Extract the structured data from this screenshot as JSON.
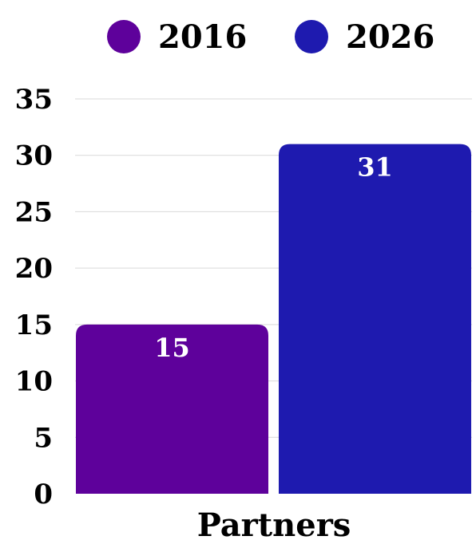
{
  "chart_data": {
    "type": "bar",
    "categories": [
      "Partners"
    ],
    "series": [
      {
        "name": "2016",
        "values": [
          15
        ],
        "color": "#5e019b"
      },
      {
        "name": "2026",
        "values": [
          31
        ],
        "color": "#1e1aaf"
      }
    ],
    "ylim": [
      0,
      35
    ],
    "y_ticks": [
      "0",
      "5",
      "10",
      "15",
      "20",
      "25",
      "30",
      "35"
    ],
    "grid": true,
    "legend": "top-center",
    "data_labels": [
      "15",
      "31"
    ],
    "xlabel": "",
    "ylabel": ""
  }
}
